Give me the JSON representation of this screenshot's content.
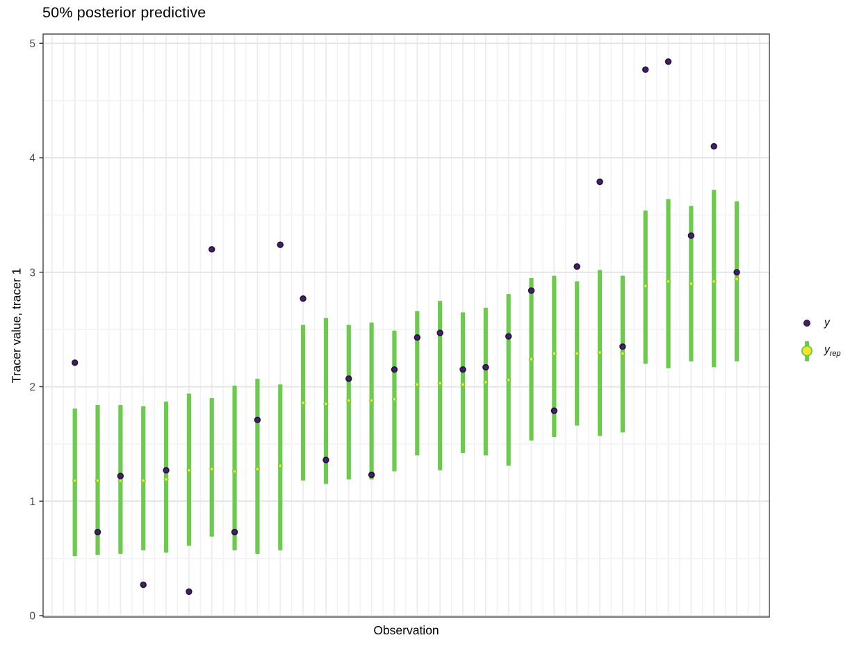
{
  "chart_data": {
    "type": "scatter",
    "subtype": "posterior-predictive-intervals",
    "title": "50% posterior predictive",
    "xlabel": "Observation",
    "ylabel": "Tracer value, tracer 1",
    "ylim": [
      0,
      5.08
    ],
    "yticks": [
      0,
      1,
      2,
      3,
      4,
      5
    ],
    "x_tick_labels_shown": false,
    "x_minor_grid_step": 0.5,
    "grid": true,
    "legend_position": "right",
    "n_obs": 30,
    "x": [
      1,
      2,
      3,
      4,
      5,
      6,
      7,
      8,
      9,
      10,
      11,
      12,
      13,
      14,
      15,
      16,
      17,
      18,
      19,
      20,
      21,
      22,
      23,
      24,
      25,
      26,
      27,
      28,
      29,
      30
    ],
    "series": [
      {
        "name": "y",
        "style": "points",
        "values": [
          2.21,
          0.73,
          1.22,
          0.27,
          1.27,
          0.21,
          3.2,
          0.73,
          1.71,
          3.24,
          2.77,
          1.36,
          2.07,
          1.23,
          2.15,
          2.43,
          2.47,
          2.15,
          2.17,
          2.44,
          2.84,
          1.79,
          3.05,
          3.79,
          2.35,
          4.77,
          4.84,
          3.32,
          4.1,
          3.0
        ]
      },
      {
        "name": "y_rep median",
        "style": "points",
        "values": [
          1.18,
          1.18,
          1.18,
          1.18,
          1.19,
          1.27,
          1.28,
          1.26,
          1.28,
          1.31,
          1.86,
          1.85,
          1.88,
          1.88,
          1.89,
          2.02,
          2.03,
          2.02,
          2.04,
          2.06,
          2.24,
          2.29,
          2.29,
          2.3,
          2.29,
          2.88,
          2.92,
          2.9,
          2.92,
          2.94
        ]
      },
      {
        "name": "y_rep 50% interval",
        "style": "intervals",
        "lower": [
          0.52,
          0.53,
          0.54,
          0.57,
          0.55,
          0.61,
          0.69,
          0.57,
          0.54,
          0.57,
          1.18,
          1.15,
          1.19,
          1.19,
          1.26,
          1.4,
          1.27,
          1.42,
          1.4,
          1.31,
          1.53,
          1.56,
          1.66,
          1.57,
          1.6,
          2.2,
          2.16,
          2.22,
          2.17,
          2.22
        ],
        "upper": [
          1.81,
          1.84,
          1.84,
          1.83,
          1.87,
          1.94,
          1.9,
          2.01,
          2.07,
          2.02,
          2.54,
          2.6,
          2.54,
          2.56,
          2.49,
          2.66,
          2.75,
          2.65,
          2.69,
          2.81,
          2.95,
          2.97,
          2.92,
          3.02,
          2.97,
          3.54,
          3.64,
          3.58,
          3.72,
          3.62
        ]
      }
    ],
    "legend": {
      "items": [
        {
          "label": "y",
          "sub": "",
          "marker": "dark-point"
        },
        {
          "label": "y",
          "sub": "rep",
          "marker": "interval-with-median"
        }
      ]
    },
    "colors": {
      "y_point_fill": "#45215B",
      "y_point_stroke": "#221147",
      "interval": "#6CCB4C",
      "median_fill": "#FBE426",
      "median_stroke": "#6CCB4C",
      "grid_major": "#e4e4e4",
      "grid_minor": "#f1f1f1",
      "grid_vertical": "#ececec",
      "panel_border": "#333333",
      "tick_label": "#4d4d4d"
    }
  }
}
